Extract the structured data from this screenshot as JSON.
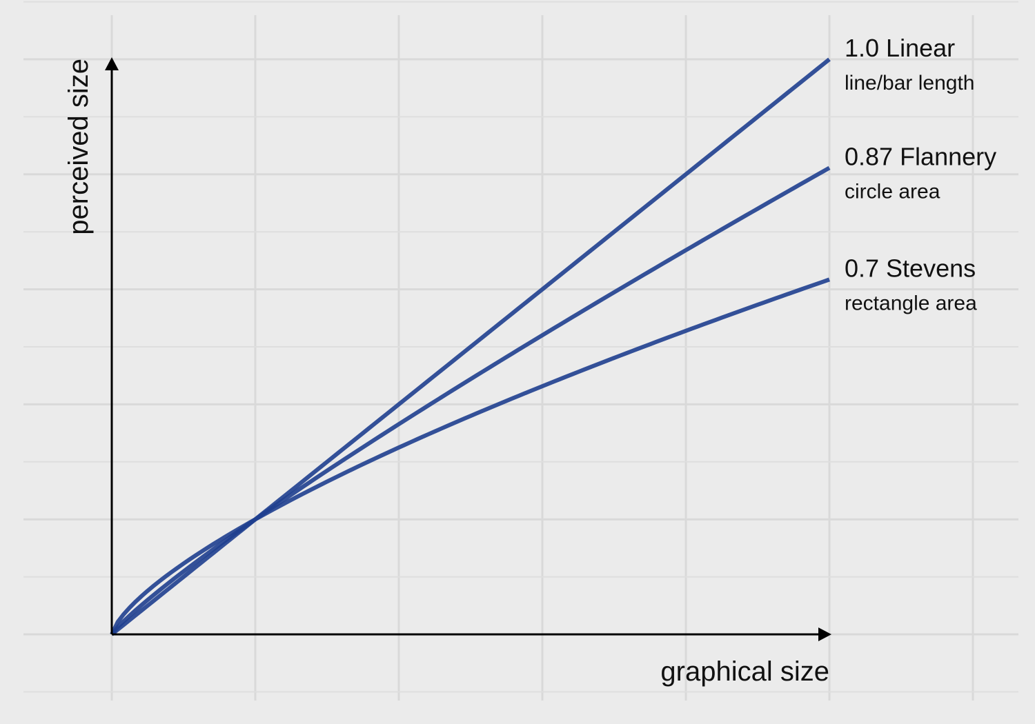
{
  "chart_data": {
    "type": "line",
    "xlabel": "graphical size",
    "ylabel": "perceived size",
    "xlim": [
      0,
      1.2
    ],
    "ylim": [
      0,
      1.0
    ],
    "grid": true,
    "x_major_ticks": [
      0,
      0.2,
      0.4,
      0.6,
      0.8,
      1.0,
      1.2
    ],
    "y_major_ticks": [
      0,
      0.2,
      0.4,
      0.6,
      0.8,
      1.0
    ],
    "series": [
      {
        "exponent": 1.0,
        "label": "1.0 Linear",
        "sublabel": "line/bar length",
        "x": [
          0,
          0.05,
          0.1,
          0.15,
          0.2,
          0.3,
          0.4,
          0.5,
          0.6,
          0.7,
          0.8,
          0.9,
          1.0
        ],
        "y": [
          0,
          0.05,
          0.1,
          0.15,
          0.2,
          0.3,
          0.4,
          0.5,
          0.6,
          0.7,
          0.8,
          0.9,
          1.0
        ]
      },
      {
        "exponent": 0.87,
        "label": "0.87 Flannery",
        "sublabel": "circle area",
        "x": [
          0,
          0.05,
          0.1,
          0.15,
          0.2,
          0.3,
          0.4,
          0.5,
          0.6,
          0.7,
          0.8,
          0.9,
          1.0
        ],
        "y": [
          0,
          0.06,
          0.11,
          0.16,
          0.2,
          0.28,
          0.37,
          0.45,
          0.52,
          0.6,
          0.67,
          0.74,
          0.81
        ]
      },
      {
        "exponent": 0.7,
        "label": "0.7 Stevens",
        "sublabel": "rectangle area",
        "x": [
          0,
          0.05,
          0.1,
          0.15,
          0.2,
          0.3,
          0.4,
          0.5,
          0.6,
          0.7,
          0.8,
          0.9,
          1.0
        ],
        "y": [
          0,
          0.07,
          0.12,
          0.16,
          0.2,
          0.27,
          0.33,
          0.38,
          0.43,
          0.48,
          0.53,
          0.57,
          0.62
        ]
      }
    ]
  },
  "colors": {
    "background": "#ebebeb",
    "series_line": "#1f3f8f",
    "grid": "#d9d9d9",
    "axis": "#000000"
  }
}
